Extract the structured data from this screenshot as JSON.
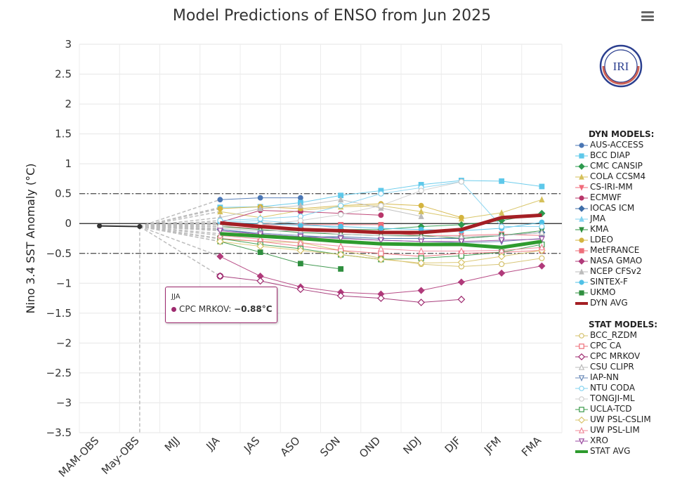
{
  "header": {
    "title": "Model Predictions of ENSO from Jun 2025",
    "menu_icon": "hamburger-menu-icon"
  },
  "logo": {
    "text": "IRI",
    "color": "#2b3f8f"
  },
  "tooltip": {
    "season": "JJA",
    "series": "CPC MRKOV",
    "value": "−0.88°C",
    "color": "#9e2a6f"
  },
  "chart_data": {
    "type": "line",
    "title": "Model Predictions of ENSO from Jun 2025",
    "ylabel": "Nino 3.4 SST Anomaly (°C)",
    "xlabel": "",
    "categories": [
      "MAM-OBS",
      "May-OBS",
      "MJJ",
      "JJA",
      "JAS",
      "ASO",
      "SON",
      "OND",
      "NDJ",
      "DJF",
      "JFM",
      "FMA"
    ],
    "ylim": [
      -3.5,
      3
    ],
    "yticks": [
      3,
      2.5,
      2,
      1.5,
      1,
      0.5,
      0,
      -0.5,
      -1,
      -1.5,
      -2,
      -2.5,
      -3,
      -3.5
    ],
    "ytick_labels": [
      "3",
      "2.5",
      "2",
      "1.5",
      "1",
      "0.5",
      "0",
      "−0.5",
      "−1",
      "−1.5",
      "−2",
      "−2.5",
      "−3",
      "−3.5"
    ],
    "thresholds": [
      0.5,
      -0.5
    ],
    "grid": true,
    "legend_position": "right",
    "observed": {
      "name": "OBS",
      "values": [
        -0.04,
        -0.05
      ],
      "color": "#333333"
    },
    "dyn_header": "DYN MODELS:",
    "stat_header": "STAT MODELS:",
    "series": [
      {
        "name": "AUS-ACCESS",
        "group": "dyn",
        "color": "#4a76b4",
        "marker": "circle",
        "values": [
          null,
          null,
          null,
          0.4,
          0.43,
          0.43,
          null,
          null,
          null,
          null,
          null,
          null
        ]
      },
      {
        "name": "BCC DIAP",
        "group": "dyn",
        "color": "#5ec8ea",
        "marker": "square",
        "values": [
          null,
          null,
          null,
          0.27,
          0.28,
          0.35,
          0.47,
          0.55,
          0.65,
          0.72,
          0.71,
          0.62
        ]
      },
      {
        "name": "CMC CANSIP",
        "group": "dyn",
        "color": "#2e9b4f",
        "marker": "diamond",
        "values": [
          null,
          null,
          null,
          -0.02,
          -0.06,
          -0.08,
          -0.1,
          -0.1,
          -0.05,
          -0.02,
          0.05,
          0.17
        ]
      },
      {
        "name": "COLA CCSM4",
        "group": "dyn",
        "color": "#d5c05a",
        "marker": "triangle",
        "values": [
          null,
          null,
          null,
          0.2,
          0.1,
          0.22,
          0.28,
          0.3,
          0.2,
          0.08,
          0.18,
          0.4
        ]
      },
      {
        "name": "CS-IRI-MM",
        "group": "dyn",
        "color": "#f06a7a",
        "marker": "triangle-down",
        "values": [
          null,
          null,
          null,
          -0.05,
          -0.08,
          -0.1,
          -0.1,
          -0.15,
          -0.2,
          -0.2,
          -0.18,
          -0.2
        ]
      },
      {
        "name": "ECMWF",
        "group": "dyn",
        "color": "#b8366a",
        "marker": "circle",
        "values": [
          null,
          null,
          null,
          0.02,
          0.22,
          0.2,
          0.17,
          0.14,
          null,
          null,
          null,
          null
        ]
      },
      {
        "name": "IOCAS ICM",
        "group": "dyn",
        "color": "#3f6ea8",
        "marker": "diamond",
        "values": [
          null,
          null,
          null,
          -0.1,
          -0.18,
          -0.22,
          -0.22,
          -0.25,
          -0.25,
          -0.25,
          -0.2,
          -0.15
        ]
      },
      {
        "name": "JMA",
        "group": "dyn",
        "color": "#80d2ef",
        "marker": "triangle",
        "values": [
          null,
          null,
          null,
          0.02,
          0.05,
          0.0,
          -0.08,
          null,
          null,
          null,
          null,
          null
        ]
      },
      {
        "name": "KMA",
        "group": "dyn",
        "color": "#2f8f3f",
        "marker": "triangle-down",
        "values": [
          null,
          null,
          null,
          -0.05,
          -0.1,
          -0.15,
          -0.18,
          -0.2,
          -0.2,
          -0.25,
          -0.2,
          -0.12
        ]
      },
      {
        "name": "LDEO",
        "group": "dyn",
        "color": "#d4b43f",
        "marker": "circle",
        "values": [
          null,
          null,
          null,
          0.25,
          0.28,
          0.25,
          0.3,
          0.33,
          0.3,
          0.1,
          null,
          null
        ]
      },
      {
        "name": "MetFRANCE",
        "group": "dyn",
        "color": "#ee6f7a",
        "marker": "square",
        "values": [
          null,
          null,
          null,
          0.0,
          -0.02,
          -0.02,
          -0.02,
          -0.02,
          null,
          null,
          null,
          null
        ]
      },
      {
        "name": "NASA GMAO",
        "group": "dyn",
        "color": "#b03a7a",
        "marker": "diamond",
        "values": [
          null,
          null,
          null,
          -0.55,
          -0.88,
          -1.06,
          -1.15,
          -1.18,
          -1.12,
          -0.98,
          -0.83,
          -0.71
        ]
      },
      {
        "name": "NCEP CFSv2",
        "group": "dyn",
        "color": "#bbbbbb",
        "marker": "triangle",
        "values": [
          null,
          null,
          null,
          0.1,
          0.25,
          0.3,
          0.4,
          0.26,
          0.12,
          null,
          null,
          null
        ]
      },
      {
        "name": "SINTEX-F",
        "group": "dyn",
        "color": "#4fc0e6",
        "marker": "circle",
        "values": [
          null,
          null,
          null,
          0.02,
          0.0,
          -0.03,
          -0.05,
          -0.08,
          -0.1,
          -0.12,
          -0.08,
          0.02
        ]
      },
      {
        "name": "UKMO",
        "group": "dyn",
        "color": "#2f8f3f",
        "marker": "square",
        "values": [
          null,
          null,
          null,
          -0.3,
          -0.48,
          -0.67,
          -0.76,
          null,
          null,
          null,
          null,
          null
        ]
      },
      {
        "name": "DYN AVG",
        "group": "dyn",
        "color": "#a41f24",
        "marker": "line-thick",
        "values": [
          null,
          null,
          null,
          0.01,
          -0.05,
          -0.1,
          -0.12,
          -0.15,
          -0.15,
          -0.1,
          0.1,
          0.14
        ]
      },
      {
        "name": "BCC_RZDM",
        "group": "stat",
        "color": "#d4c06a",
        "marker": "circle-open",
        "values": [
          null,
          null,
          null,
          -0.26,
          -0.3,
          -0.32,
          -0.45,
          -0.58,
          -0.68,
          -0.72,
          -0.68,
          -0.58
        ]
      },
      {
        "name": "CPC CA",
        "group": "stat",
        "color": "#ee6f7a",
        "marker": "square-open",
        "values": [
          null,
          null,
          null,
          -0.25,
          -0.3,
          -0.38,
          -0.45,
          -0.5,
          -0.55,
          -0.5,
          -0.48,
          -0.45
        ]
      },
      {
        "name": "CPC MRKOV",
        "group": "stat",
        "color": "#9e2a6f",
        "marker": "diamond-open",
        "values": [
          null,
          null,
          null,
          -0.88,
          -0.96,
          -1.1,
          -1.21,
          -1.25,
          -1.32,
          -1.27,
          null,
          null
        ]
      },
      {
        "name": "CSU CLIPR",
        "group": "stat",
        "color": "#bbbbbb",
        "marker": "triangle-open",
        "values": [
          null,
          null,
          null,
          -0.08,
          -0.12,
          -0.12,
          -0.18,
          -0.2,
          -0.22,
          -0.22,
          -0.2,
          -0.15
        ]
      },
      {
        "name": "IAP-NN",
        "group": "stat",
        "color": "#6a8ab8",
        "marker": "triangle-down-open",
        "values": [
          null,
          null,
          null,
          -0.1,
          -0.16,
          -0.2,
          -0.24,
          -0.28,
          -0.3,
          -0.32,
          -0.3,
          -0.25
        ]
      },
      {
        "name": "NTU CODA",
        "group": "stat",
        "color": "#80d2ef",
        "marker": "circle-open",
        "values": [
          null,
          null,
          null,
          0.05,
          0.08,
          0.12,
          0.3,
          0.5,
          0.6,
          0.7,
          -0.05,
          -0.05
        ]
      },
      {
        "name": "TONGJI-ML",
        "group": "stat",
        "color": "#cccccc",
        "marker": "circle-open",
        "values": [
          null,
          null,
          null,
          -0.05,
          -0.02,
          0.05,
          0.15,
          0.3,
          0.55,
          0.7,
          null,
          null
        ]
      },
      {
        "name": "UCLA-TCD",
        "group": "stat",
        "color": "#3a9a4a",
        "marker": "square-open",
        "values": [
          null,
          null,
          null,
          -0.25,
          -0.35,
          -0.42,
          -0.52,
          -0.6,
          -0.58,
          -0.54,
          -0.48,
          -0.35
        ]
      },
      {
        "name": "UW PSL-CSLIM",
        "group": "stat",
        "color": "#d9c46a",
        "marker": "diamond-open",
        "values": [
          null,
          null,
          null,
          -0.3,
          -0.38,
          -0.45,
          -0.52,
          -0.6,
          -0.66,
          -0.65,
          -0.55,
          -0.45
        ]
      },
      {
        "name": "UW PSL-LIM",
        "group": "stat",
        "color": "#f08a9a",
        "marker": "triangle-open",
        "values": [
          null,
          null,
          null,
          -0.2,
          -0.26,
          -0.32,
          -0.38,
          -0.42,
          -0.46,
          -0.46,
          -0.45,
          -0.4
        ]
      },
      {
        "name": "XRO",
        "group": "stat",
        "color": "#9a4aa0",
        "marker": "triangle-down-open",
        "values": [
          null,
          null,
          null,
          -0.12,
          -0.18,
          -0.22,
          -0.25,
          -0.28,
          -0.3,
          -0.3,
          -0.28,
          -0.26
        ]
      },
      {
        "name": "STAT AVG",
        "group": "stat",
        "color": "#2e9b2e",
        "marker": "line-thick",
        "values": [
          null,
          null,
          null,
          -0.17,
          -0.21,
          -0.25,
          -0.3,
          -0.34,
          -0.35,
          -0.35,
          -0.4,
          -0.3
        ]
      }
    ]
  }
}
